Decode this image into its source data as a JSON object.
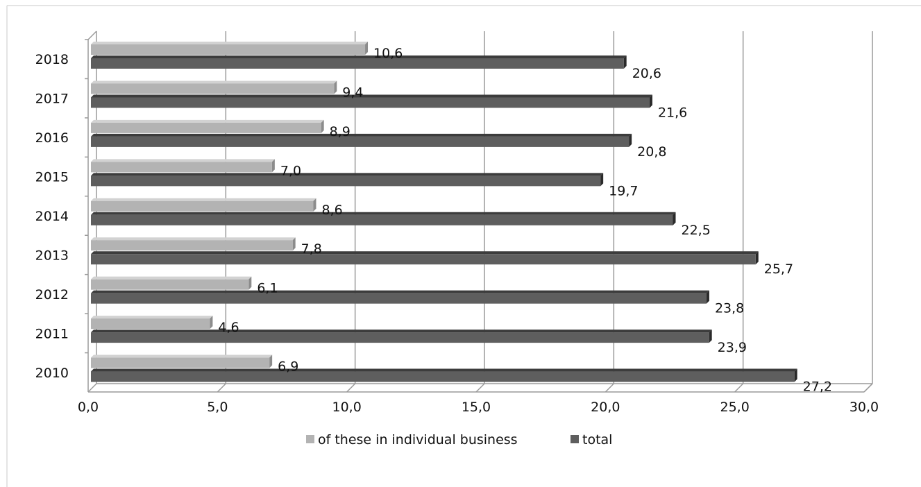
{
  "chart_data": {
    "type": "bar",
    "orientation": "horizontal",
    "title": "",
    "xlabel": "",
    "ylabel": "",
    "categories": [
      "2018",
      "2017",
      "2016",
      "2015",
      "2014",
      "2013",
      "2012",
      "2011",
      "2010"
    ],
    "series": [
      {
        "name": "of these in individual business",
        "color": "#b3b3b3",
        "values": [
          10.6,
          9.4,
          8.9,
          7.0,
          8.6,
          7.8,
          6.1,
          4.6,
          6.9
        ],
        "value_labels": [
          "10,6",
          "9,4",
          "8,9",
          "7,0",
          "8,6",
          "7,8",
          "6,1",
          "4,6",
          "6,9"
        ]
      },
      {
        "name": "total",
        "color": "#5e5e5e",
        "values": [
          20.6,
          21.6,
          20.8,
          19.7,
          22.5,
          25.7,
          23.8,
          23.9,
          27.2
        ],
        "value_labels": [
          "20,6",
          "21,6",
          "20,8",
          "19,7",
          "22,5",
          "25,7",
          "23,8",
          "23,9",
          "27,2"
        ]
      }
    ],
    "xlim": [
      0,
      30
    ],
    "xticks": [
      0,
      5,
      10,
      15,
      20,
      25,
      30
    ],
    "xtick_labels": [
      "0,0",
      "5,0",
      "10,0",
      "15,0",
      "20,0",
      "25,0",
      "30,0"
    ],
    "grid": true,
    "legend_position": "bottom"
  }
}
